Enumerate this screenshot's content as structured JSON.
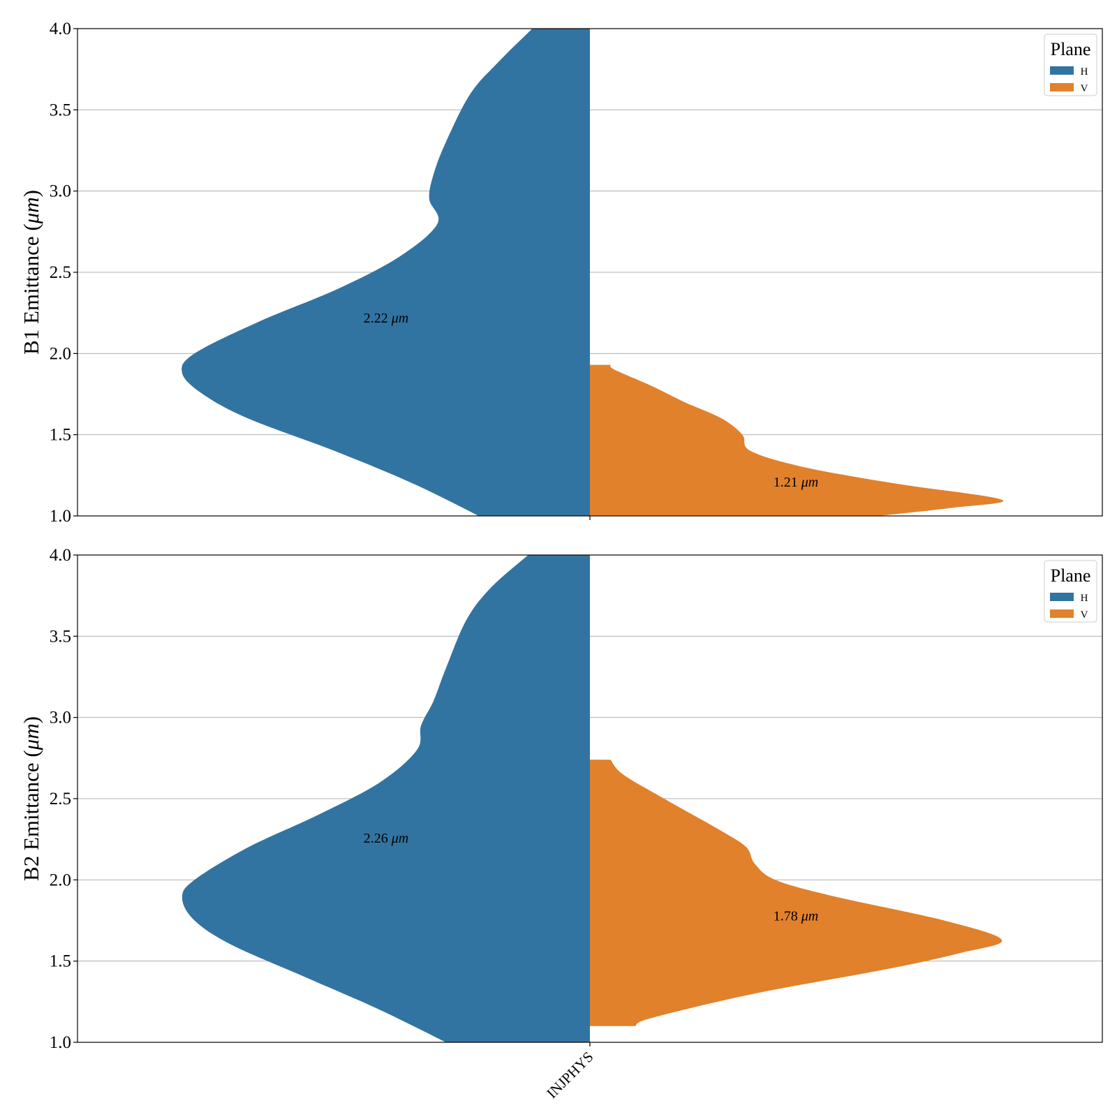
{
  "chart_data": [
    {
      "type": "violin",
      "split": true,
      "ylabel": "B1 Emittance (μm)",
      "ylabel_prefix": "B1 Emittance (",
      "ylabel_unit": "μm",
      "ylabel_suffix": ")",
      "ylim": [
        1.0,
        4.0
      ],
      "yticks": [
        "1.0",
        "1.5",
        "2.0",
        "2.5",
        "3.0",
        "3.5",
        "4.0"
      ],
      "grid": "horizontal",
      "legend": {
        "title": "Plane",
        "placement": "top-right",
        "entries": [
          "H",
          "V"
        ]
      },
      "categories": [
        "INJPHYS"
      ],
      "series": [
        {
          "name": "H",
          "side": "left",
          "median_label": "2.22 μm",
          "median_value": "2.22",
          "median_unit": "μm",
          "extent": [
            1.0,
            4.0
          ],
          "density": [
            [
              1.0,
              0.27
            ],
            [
              1.2,
              0.43
            ],
            [
              1.4,
              0.62
            ],
            [
              1.6,
              0.83
            ],
            [
              1.75,
              0.94
            ],
            [
              1.88,
              0.99
            ],
            [
              2.0,
              0.96
            ],
            [
              2.2,
              0.8
            ],
            [
              2.4,
              0.61
            ],
            [
              2.6,
              0.46
            ],
            [
              2.8,
              0.37
            ],
            [
              2.95,
              0.39
            ],
            [
              3.1,
              0.38
            ],
            [
              3.3,
              0.35
            ],
            [
              3.6,
              0.29
            ],
            [
              3.8,
              0.22
            ],
            [
              4.0,
              0.14
            ]
          ]
        },
        {
          "name": "V",
          "side": "right",
          "median_label": "1.21 μm",
          "median_value": "1.21",
          "median_unit": "μm",
          "extent": [
            1.0,
            1.93
          ],
          "density": [
            [
              1.0,
              0.7
            ],
            [
              1.05,
              0.88
            ],
            [
              1.1,
              1.0
            ],
            [
              1.2,
              0.74
            ],
            [
              1.3,
              0.52
            ],
            [
              1.4,
              0.39
            ],
            [
              1.5,
              0.37
            ],
            [
              1.6,
              0.32
            ],
            [
              1.7,
              0.23
            ],
            [
              1.8,
              0.15
            ],
            [
              1.9,
              0.06
            ],
            [
              1.93,
              0.05
            ]
          ]
        }
      ]
    },
    {
      "type": "violin",
      "split": true,
      "ylabel": "B2 Emittance (μm)",
      "ylabel_prefix": "B2 Emittance (",
      "ylabel_unit": "μm",
      "ylabel_suffix": ")",
      "ylim": [
        1.0,
        4.0
      ],
      "yticks": [
        "1.0",
        "1.5",
        "2.0",
        "2.5",
        "3.0",
        "3.5",
        "4.0"
      ],
      "grid": "horizontal",
      "legend": {
        "title": "Plane",
        "placement": "top-right",
        "entries": [
          "H",
          "V"
        ]
      },
      "categories": [
        "INJPHYS"
      ],
      "series": [
        {
          "name": "H",
          "side": "left",
          "median_label": "2.26 μm",
          "median_value": "2.26",
          "median_unit": "μm",
          "extent": [
            1.0,
            4.0
          ],
          "density": [
            [
              1.0,
              0.35
            ],
            [
              1.2,
              0.51
            ],
            [
              1.4,
              0.69
            ],
            [
              1.6,
              0.87
            ],
            [
              1.75,
              0.96
            ],
            [
              1.89,
              0.99
            ],
            [
              2.0,
              0.96
            ],
            [
              2.2,
              0.83
            ],
            [
              2.4,
              0.66
            ],
            [
              2.6,
              0.51
            ],
            [
              2.8,
              0.42
            ],
            [
              2.95,
              0.41
            ],
            [
              3.1,
              0.38
            ],
            [
              3.3,
              0.35
            ],
            [
              3.6,
              0.3
            ],
            [
              3.8,
              0.24
            ],
            [
              4.0,
              0.15
            ]
          ]
        },
        {
          "name": "V",
          "side": "right",
          "median_label": "1.78 μm",
          "median_value": "1.78",
          "median_unit": "μm",
          "extent": [
            1.1,
            2.74
          ],
          "density": [
            [
              1.1,
              0.11
            ],
            [
              1.15,
              0.15
            ],
            [
              1.3,
              0.4
            ],
            [
              1.45,
              0.72
            ],
            [
              1.55,
              0.9
            ],
            [
              1.63,
              1.0
            ],
            [
              1.75,
              0.86
            ],
            [
              1.9,
              0.59
            ],
            [
              2.0,
              0.45
            ],
            [
              2.1,
              0.4
            ],
            [
              2.2,
              0.38
            ],
            [
              2.3,
              0.32
            ],
            [
              2.5,
              0.18
            ],
            [
              2.65,
              0.08
            ],
            [
              2.74,
              0.05
            ]
          ]
        }
      ]
    }
  ],
  "colors": {
    "H": "#3274a1",
    "V": "#e1812c",
    "grid": "#b0b0b0",
    "legend_border": "#cccccc"
  }
}
